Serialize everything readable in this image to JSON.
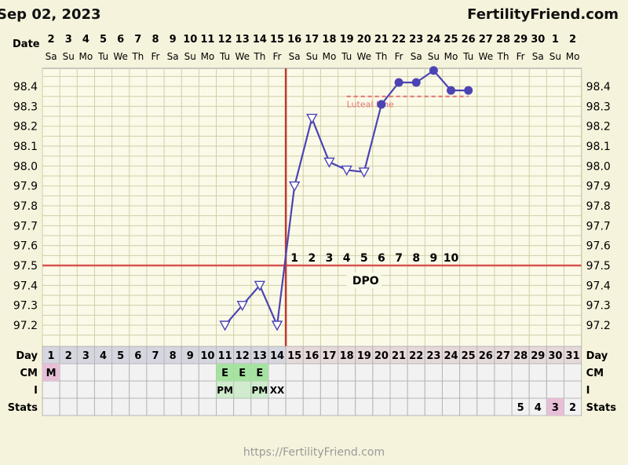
{
  "header": {
    "date": "Sep 02, 2023",
    "site": "FertilityFriend.com"
  },
  "footer": {
    "url": "https://FertilityFriend.com"
  },
  "colors": {
    "background": "#f6f3dc",
    "grid": "#cfcfa8",
    "line": "#4b44b4",
    "coverline": "#d9534f",
    "ovulation": "#c0392b",
    "luteal": "#e57373",
    "cm_egg": "#a6e3a1",
    "cm_m": "#e6bfd6",
    "stat_hl": "#e6bfd6"
  },
  "labels": {
    "date": "Date",
    "day": "Day",
    "cm": "CM",
    "i": "I",
    "stats": "Stats",
    "dpo": "DPO",
    "luteal_line": "Luteal Line"
  },
  "chart_data": {
    "type": "line",
    "xlabel": "Day",
    "ylabel": "",
    "ylim": [
      97.15,
      98.52
    ],
    "y_ticks": [
      "97.2",
      "97.3",
      "97.4",
      "97.5",
      "97.6",
      "97.7",
      "97.8",
      "97.9",
      "98.0",
      "98.1",
      "98.2",
      "98.3",
      "98.4"
    ],
    "date_numbers": [
      "2",
      "3",
      "4",
      "5",
      "6",
      "7",
      "8",
      "9",
      "10",
      "11",
      "12",
      "13",
      "14",
      "15",
      "16",
      "17",
      "18",
      "19",
      "20",
      "21",
      "22",
      "23",
      "24",
      "25",
      "26",
      "27",
      "28",
      "29",
      "30",
      "1",
      "2"
    ],
    "weekdays": [
      "Sa",
      "Su",
      "Mo",
      "Tu",
      "We",
      "Th",
      "Fr",
      "Sa",
      "Su",
      "Mo",
      "Tu",
      "We",
      "Th",
      "Fr",
      "Sa",
      "Su",
      "Mo",
      "Tu",
      "We",
      "Th",
      "Fr",
      "Sa",
      "Su",
      "Mo",
      "Tu",
      "We",
      "Th",
      "Fr",
      "Sa",
      "Su",
      "Mo"
    ],
    "cycle_days": [
      "1",
      "2",
      "3",
      "4",
      "5",
      "6",
      "7",
      "8",
      "9",
      "10",
      "11",
      "12",
      "13",
      "14",
      "15",
      "16",
      "17",
      "18",
      "19",
      "20",
      "21",
      "22",
      "23",
      "24",
      "25",
      "26",
      "27",
      "28",
      "29",
      "30",
      "31"
    ],
    "series": [
      {
        "points": [
          {
            "day": 11,
            "temp": 97.2,
            "marker": "open-triangle"
          },
          {
            "day": 12,
            "temp": 97.3,
            "marker": "open-triangle"
          },
          {
            "day": 13,
            "temp": 97.4,
            "marker": "open-triangle"
          },
          {
            "day": 14,
            "temp": 97.2,
            "marker": "open-triangle"
          },
          {
            "day": 15,
            "temp": 97.9,
            "marker": "open-triangle"
          },
          {
            "day": 16,
            "temp": 98.24,
            "marker": "open-triangle"
          },
          {
            "day": 17,
            "temp": 98.02,
            "marker": "open-triangle"
          },
          {
            "day": 18,
            "temp": 97.98,
            "marker": "open-triangle"
          },
          {
            "day": 19,
            "temp": 97.97,
            "marker": "open-triangle"
          },
          {
            "day": 20,
            "temp": 98.31,
            "marker": "dot"
          },
          {
            "day": 21,
            "temp": 98.42,
            "marker": "dot"
          },
          {
            "day": 22,
            "temp": 98.42,
            "marker": "dot"
          },
          {
            "day": 23,
            "temp": 98.48,
            "marker": "dot"
          },
          {
            "day": 24,
            "temp": 98.38,
            "marker": "dot"
          },
          {
            "day": 25,
            "temp": 98.38,
            "marker": "dot"
          }
        ]
      }
    ],
    "coverline": 97.5,
    "ovulation_day": 14,
    "luteal_line": {
      "temp": 98.35,
      "from_day": 18,
      "to_day": 25
    },
    "dpo_labels": [
      "1",
      "2",
      "3",
      "4",
      "5",
      "6",
      "7",
      "8",
      "9",
      "10"
    ],
    "cm": [
      {
        "day": 1,
        "text": "M",
        "color": "#e6bfd6"
      },
      {
        "day": 11,
        "text": "E",
        "color": "#a6e3a1"
      },
      {
        "day": 12,
        "text": "E",
        "color": "#a6e3a1"
      },
      {
        "day": 13,
        "text": "E",
        "color": "#a6e3a1"
      }
    ],
    "intercourse": [
      {
        "day": 11,
        "text": "PM"
      },
      {
        "day": 13,
        "text": "PM"
      },
      {
        "day": 14,
        "text": "XX"
      }
    ],
    "stats": [
      {
        "day": 28,
        "text": "5"
      },
      {
        "day": 29,
        "text": "4"
      },
      {
        "day": 30,
        "text": "3",
        "highlight": true
      },
      {
        "day": 31,
        "text": "2"
      }
    ],
    "grid": true
  }
}
